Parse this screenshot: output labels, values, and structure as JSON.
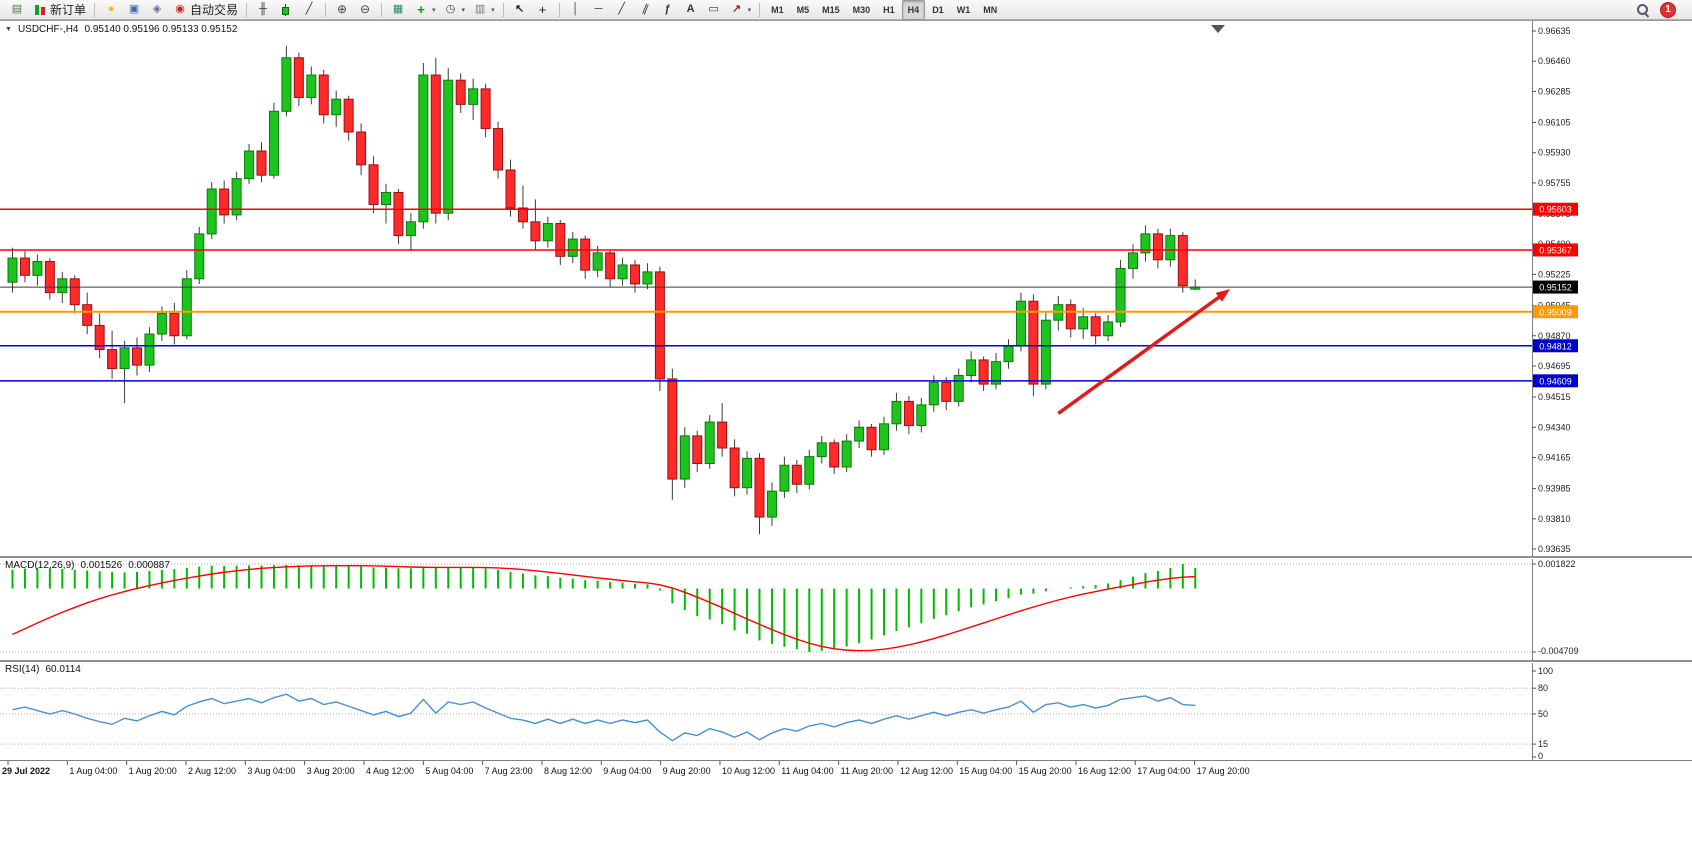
{
  "toolbar": {
    "items": [
      {
        "name": "new-chart",
        "icon": "chart-plus-icon"
      },
      {
        "name": "new-order",
        "icon": "new-order-icon",
        "label": "新订单"
      },
      {
        "sep": true
      },
      {
        "name": "market-watch",
        "icon": "lightbulb-icon"
      },
      {
        "name": "data-window",
        "icon": "chart-window-icon"
      },
      {
        "name": "navigator",
        "icon": "navigator-icon"
      },
      {
        "name": "auto-trading",
        "icon": "autotrading-icon",
        "label": "自动交易"
      },
      {
        "sep": true
      },
      {
        "name": "bar-chart-mode",
        "icon": "ohlc-bars-icon"
      },
      {
        "name": "candlestick-mode",
        "icon": "candlestick-icon"
      },
      {
        "name": "line-chart-mode",
        "icon": "line-chart-icon"
      },
      {
        "sep": true
      },
      {
        "name": "zoom-in",
        "icon": "zoom-in-icon"
      },
      {
        "name": "zoom-out",
        "icon": "zoom-out-icon"
      },
      {
        "sep": true
      },
      {
        "name": "tile-windows",
        "icon": "tile-windows-icon"
      },
      {
        "name": "indicators",
        "icon": "indicators-icon",
        "drop": true
      },
      {
        "name": "periods",
        "icon": "clock-icon",
        "drop": true
      },
      {
        "name": "templates",
        "icon": "template-icon",
        "drop": true
      },
      {
        "sep": true
      },
      {
        "name": "cursor",
        "icon": "cursor-icon"
      },
      {
        "name": "crosshair",
        "icon": "crosshair-icon"
      },
      {
        "sep": true
      },
      {
        "name": "vertical-line",
        "icon": "vline-icon"
      },
      {
        "name": "horizontal-line",
        "icon": "hline-icon"
      },
      {
        "name": "trendline",
        "icon": "trendline-icon"
      },
      {
        "name": "equidistant-channel",
        "icon": "channel-icon"
      },
      {
        "name": "fibonacci-retracement",
        "icon": "fibonacci-icon"
      },
      {
        "name": "text",
        "icon": "text-icon"
      },
      {
        "name": "text-label",
        "icon": "label-icon"
      },
      {
        "name": "arrows",
        "icon": "arrow-icon",
        "drop": true
      },
      {
        "sep": true
      },
      {
        "name": "tf-m1",
        "label": "M1",
        "tf": true
      },
      {
        "name": "tf-m5",
        "label": "M5",
        "tf": true
      },
      {
        "name": "tf-m15",
        "label": "M15",
        "tf": true
      },
      {
        "name": "tf-m30",
        "label": "M30",
        "tf": true
      },
      {
        "name": "tf-h1",
        "label": "H1",
        "tf": true
      },
      {
        "name": "tf-h4",
        "label": "H4",
        "tf": true,
        "active": true
      },
      {
        "name": "tf-d1",
        "label": "D1",
        "tf": true
      },
      {
        "name": "tf-w1",
        "label": "W1",
        "tf": true
      },
      {
        "name": "tf-mn",
        "label": "MN",
        "tf": true
      }
    ],
    "right_items": [
      {
        "name": "search",
        "icon": "magnifier-icon"
      },
      {
        "name": "notifications",
        "icon": "notification-badge",
        "label": "1"
      }
    ]
  },
  "chart": {
    "title_symbol": "USDCHF-,H4",
    "title_ohlc": "0.95140 0.95196 0.95133 0.95152"
  },
  "chart_data": {
    "type": "candlestick",
    "symbol": "USDCHF",
    "timeframe": "H4",
    "colors": {
      "bull": "#1ec41e",
      "bull_border": "#0b7a0b",
      "bear": "#ff2a2a",
      "bear_border": "#991111",
      "wick": "#3c3c3c",
      "macd_histogram": "#00bb00",
      "macd_signal": "#ff0000",
      "rsi_line": "#4a90d2"
    },
    "y_axis": {
      "max": 0.96635,
      "min": 0.93635,
      "ticks": [
        "0.96635",
        "0.96460",
        "0.96285",
        "0.96105",
        "0.95930",
        "0.95755",
        "0.95575",
        "0.95400",
        "0.95225",
        "0.95045",
        "0.94870",
        "0.94695",
        "0.94515",
        "0.94340",
        "0.94165",
        "0.93985",
        "0.93810",
        "0.93635"
      ]
    },
    "x_axis": {
      "labels": [
        "29 Jul 2022",
        "1 Aug 04:00",
        "1 Aug 20:00",
        "2 Aug 12:00",
        "3 Aug 04:00",
        "3 Aug 20:00",
        "4 Aug 12:00",
        "5 Aug 04:00",
        "7 Aug 23:00",
        "8 Aug 12:00",
        "9 Aug 04:00",
        "9 Aug 20:00",
        "10 Aug 12:00",
        "11 Aug 04:00",
        "11 Aug 20:00",
        "12 Aug 12:00",
        "15 Aug 04:00",
        "15 Aug 20:00",
        "16 Aug 12:00",
        "17 Aug 04:00",
        "17 Aug 20:00"
      ]
    },
    "ohlc": [
      [
        0.9518,
        0.9538,
        0.9512,
        0.9532
      ],
      [
        0.9532,
        0.9536,
        0.9518,
        0.9522
      ],
      [
        0.9522,
        0.9534,
        0.9516,
        0.953
      ],
      [
        0.953,
        0.9532,
        0.9508,
        0.9512
      ],
      [
        0.9512,
        0.9524,
        0.9506,
        0.952
      ],
      [
        0.952,
        0.9522,
        0.95,
        0.9505
      ],
      [
        0.9505,
        0.9512,
        0.9488,
        0.9493
      ],
      [
        0.9493,
        0.95,
        0.9474,
        0.9479
      ],
      [
        0.9479,
        0.949,
        0.9462,
        0.9468
      ],
      [
        0.9468,
        0.9484,
        0.9448,
        0.948
      ],
      [
        0.948,
        0.9486,
        0.9464,
        0.947
      ],
      [
        0.947,
        0.9492,
        0.9466,
        0.9488
      ],
      [
        0.9488,
        0.9504,
        0.9484,
        0.95
      ],
      [
        0.95,
        0.9506,
        0.9482,
        0.9487
      ],
      [
        0.9487,
        0.9525,
        0.9485,
        0.952
      ],
      [
        0.952,
        0.955,
        0.9517,
        0.9546
      ],
      [
        0.9546,
        0.9576,
        0.9543,
        0.9572
      ],
      [
        0.9572,
        0.9577,
        0.9552,
        0.9557
      ],
      [
        0.9557,
        0.9582,
        0.9554,
        0.9578
      ],
      [
        0.9578,
        0.9598,
        0.9575,
        0.9594
      ],
      [
        0.9594,
        0.9599,
        0.9576,
        0.958
      ],
      [
        0.958,
        0.9622,
        0.9578,
        0.9617
      ],
      [
        0.9617,
        0.9655,
        0.9614,
        0.9648
      ],
      [
        0.9648,
        0.9651,
        0.962,
        0.9625
      ],
      [
        0.9625,
        0.9643,
        0.9621,
        0.9638
      ],
      [
        0.9638,
        0.9641,
        0.961,
        0.9615
      ],
      [
        0.9615,
        0.9629,
        0.9608,
        0.9624
      ],
      [
        0.9624,
        0.9626,
        0.96,
        0.9605
      ],
      [
        0.9605,
        0.961,
        0.958,
        0.9586
      ],
      [
        0.9586,
        0.9591,
        0.9558,
        0.9563
      ],
      [
        0.9563,
        0.9575,
        0.9552,
        0.957
      ],
      [
        0.957,
        0.9572,
        0.954,
        0.9545
      ],
      [
        0.9545,
        0.9558,
        0.9536,
        0.9553
      ],
      [
        0.9553,
        0.9645,
        0.9549,
        0.9638
      ],
      [
        0.9638,
        0.9648,
        0.9552,
        0.9558
      ],
      [
        0.9558,
        0.9642,
        0.9554,
        0.9635
      ],
      [
        0.9635,
        0.9639,
        0.9616,
        0.9621
      ],
      [
        0.9621,
        0.9636,
        0.9612,
        0.963
      ],
      [
        0.963,
        0.9633,
        0.9602,
        0.9607
      ],
      [
        0.9607,
        0.9611,
        0.9578,
        0.9583
      ],
      [
        0.9583,
        0.9589,
        0.9556,
        0.9561
      ],
      [
        0.9561,
        0.9574,
        0.9549,
        0.9553
      ],
      [
        0.9553,
        0.9566,
        0.9537,
        0.9542
      ],
      [
        0.9542,
        0.9556,
        0.9538,
        0.9552
      ],
      [
        0.9552,
        0.9554,
        0.9528,
        0.9533
      ],
      [
        0.9533,
        0.9547,
        0.9529,
        0.9543
      ],
      [
        0.9543,
        0.9545,
        0.952,
        0.9525
      ],
      [
        0.9525,
        0.9539,
        0.9521,
        0.9535
      ],
      [
        0.9535,
        0.9537,
        0.9515,
        0.952
      ],
      [
        0.952,
        0.9532,
        0.9516,
        0.9528
      ],
      [
        0.9528,
        0.9531,
        0.9512,
        0.9517
      ],
      [
        0.9517,
        0.9529,
        0.9514,
        0.9524
      ],
      [
        0.9524,
        0.9527,
        0.9455,
        0.9462
      ],
      [
        0.9462,
        0.9468,
        0.9392,
        0.9404
      ],
      [
        0.9404,
        0.9434,
        0.9399,
        0.9429
      ],
      [
        0.9429,
        0.9432,
        0.9408,
        0.9413
      ],
      [
        0.9413,
        0.9441,
        0.941,
        0.9437
      ],
      [
        0.9437,
        0.9448,
        0.9417,
        0.9422
      ],
      [
        0.9422,
        0.9427,
        0.9394,
        0.9399
      ],
      [
        0.9399,
        0.942,
        0.9395,
        0.9416
      ],
      [
        0.9416,
        0.9419,
        0.9372,
        0.9382
      ],
      [
        0.9382,
        0.9402,
        0.9377,
        0.9397
      ],
      [
        0.9397,
        0.9417,
        0.9393,
        0.9412
      ],
      [
        0.9412,
        0.9415,
        0.9396,
        0.9401
      ],
      [
        0.9401,
        0.9421,
        0.9398,
        0.9417
      ],
      [
        0.9417,
        0.9429,
        0.9413,
        0.9425
      ],
      [
        0.9425,
        0.9427,
        0.9407,
        0.9411
      ],
      [
        0.9411,
        0.943,
        0.9408,
        0.9426
      ],
      [
        0.9426,
        0.9438,
        0.9422,
        0.9434
      ],
      [
        0.9434,
        0.9436,
        0.9417,
        0.9421
      ],
      [
        0.9421,
        0.944,
        0.9418,
        0.9436
      ],
      [
        0.9436,
        0.9454,
        0.9432,
        0.9449
      ],
      [
        0.9449,
        0.9452,
        0.943,
        0.9435
      ],
      [
        0.9435,
        0.9451,
        0.9431,
        0.9447
      ],
      [
        0.9447,
        0.9464,
        0.9443,
        0.946
      ],
      [
        0.946,
        0.9463,
        0.9444,
        0.9449
      ],
      [
        0.9449,
        0.9468,
        0.9446,
        0.9464
      ],
      [
        0.9464,
        0.9478,
        0.946,
        0.9473
      ],
      [
        0.9473,
        0.9475,
        0.9455,
        0.9459
      ],
      [
        0.9459,
        0.9477,
        0.9456,
        0.9472
      ],
      [
        0.9472,
        0.9485,
        0.9468,
        0.9481
      ],
      [
        0.9481,
        0.9512,
        0.9478,
        0.9507
      ],
      [
        0.9507,
        0.9511,
        0.9452,
        0.9459
      ],
      [
        0.9459,
        0.9501,
        0.9456,
        0.9496
      ],
      [
        0.9496,
        0.951,
        0.949,
        0.9505
      ],
      [
        0.9505,
        0.9508,
        0.9486,
        0.9491
      ],
      [
        0.9491,
        0.9503,
        0.9485,
        0.9498
      ],
      [
        0.9498,
        0.95,
        0.9482,
        0.9487
      ],
      [
        0.9487,
        0.9499,
        0.9484,
        0.9495
      ],
      [
        0.9495,
        0.9531,
        0.9492,
        0.9526
      ],
      [
        0.9526,
        0.954,
        0.952,
        0.9535
      ],
      [
        0.9535,
        0.9551,
        0.953,
        0.9546
      ],
      [
        0.9546,
        0.9549,
        0.9526,
        0.9531
      ],
      [
        0.9531,
        0.9549,
        0.9527,
        0.9545
      ],
      [
        0.9545,
        0.9547,
        0.9512,
        0.9516
      ],
      [
        0.9514,
        0.95196,
        0.95133,
        0.95152
      ]
    ],
    "horizontal_levels": [
      {
        "price": 0.95603,
        "label": "0.95603",
        "color": "#ff0000",
        "box": "#ff0000",
        "width": 1.5
      },
      {
        "price": 0.95367,
        "label": "0.95367",
        "color": "#ff0000",
        "box": "#ff0000",
        "width": 1.5
      },
      {
        "price": 0.95152,
        "label": "0.95152",
        "color": "#3a3a3a",
        "box": "#000000",
        "width": 1,
        "current": true
      },
      {
        "price": 0.95009,
        "label": "0.95009",
        "color": "#ff9900",
        "box": "#ff9900",
        "width": 2
      },
      {
        "price": 0.94812,
        "label": "0.94812",
        "color": "#0000e0",
        "box": "#0000cc",
        "width": 1.5
      },
      {
        "price": 0.94609,
        "label": "0.94609",
        "color": "#0000e0",
        "box": "#0000cc",
        "width": 1.5
      }
    ],
    "trend_arrow": {
      "from": {
        "bar": 84,
        "price": 0.9442
      },
      "to": {
        "bar": 97.8,
        "price": 0.9514
      },
      "color": "#e01b1b"
    },
    "indicators": {
      "macd": {
        "name": "MACD(12,26,9)",
        "value_main": "0.001526",
        "value_signal": "0.000887",
        "scale_max": "0.001822",
        "scale_min": "-0.004709",
        "main": [
          0.0014,
          0.00148,
          0.00152,
          0.0015,
          0.00146,
          0.0014,
          0.00134,
          0.00128,
          0.00122,
          0.0012,
          0.00124,
          0.0013,
          0.00138,
          0.00144,
          0.00154,
          0.00163,
          0.0017,
          0.00168,
          0.0017,
          0.00172,
          0.0017,
          0.00173,
          0.00176,
          0.00172,
          0.00173,
          0.0017,
          0.00171,
          0.00168,
          0.00163,
          0.00157,
          0.00156,
          0.0015,
          0.0015,
          0.00162,
          0.00152,
          0.0016,
          0.00158,
          0.00158,
          0.0015,
          0.00138,
          0.00124,
          0.00112,
          0.00098,
          0.00092,
          0.0008,
          0.00074,
          0.00062,
          0.00058,
          0.00048,
          0.00044,
          0.00036,
          0.00032,
          -0.00015,
          -0.0011,
          -0.0016,
          -0.00205,
          -0.0023,
          -0.00265,
          -0.0031,
          -0.00335,
          -0.00385,
          -0.0041,
          -0.00432,
          -0.0045,
          -0.004709,
          -0.00462,
          -0.00448,
          -0.0043,
          -0.00405,
          -0.00378,
          -0.00348,
          -0.00315,
          -0.00288,
          -0.00258,
          -0.00225,
          -0.00198,
          -0.00168,
          -0.0014,
          -0.00118,
          -0.00095,
          -0.00072,
          -0.00045,
          -0.00038,
          -0.0002,
          0.0,
          8e-05,
          0.00018,
          0.00026,
          0.00038,
          0.00062,
          0.00088,
          0.00115,
          0.0013,
          0.00152,
          0.001822,
          0.001526
        ],
        "signal": [
          -0.0034,
          -0.00298,
          -0.00256,
          -0.00215,
          -0.00176,
          -0.0014,
          -0.00106,
          -0.00075,
          -0.00047,
          -0.00022,
          1e-05,
          0.00022,
          0.00042,
          0.0006,
          0.00077,
          0.00093,
          0.00108,
          0.00121,
          0.00132,
          0.00142,
          0.0015,
          0.00156,
          0.00161,
          0.00165,
          0.00168,
          0.00169,
          0.0017,
          0.0017,
          0.0017,
          0.00168,
          0.00166,
          0.00163,
          0.0016,
          0.00158,
          0.00157,
          0.00157,
          0.00157,
          0.00157,
          0.00156,
          0.00153,
          0.00148,
          0.00141,
          0.00132,
          0.00122,
          0.00112,
          0.00101,
          0.0009,
          0.00079,
          0.00069,
          0.00059,
          0.0005,
          0.00042,
          0.00028,
          4e-05,
          -0.00028,
          -0.00064,
          -0.00102,
          -0.00142,
          -0.00184,
          -0.00226,
          -0.00266,
          -0.00305,
          -0.00342,
          -0.00376,
          -0.00406,
          -0.0043,
          -0.00447,
          -0.00457,
          -0.00461,
          -0.00459,
          -0.0045,
          -0.00436,
          -0.00418,
          -0.00396,
          -0.00371,
          -0.00344,
          -0.00315,
          -0.00285,
          -0.00255,
          -0.00225,
          -0.00195,
          -0.00165,
          -0.00137,
          -0.0011,
          -0.00085,
          -0.00062,
          -0.00041,
          -0.00022,
          -4e-05,
          0.00013,
          0.0003,
          0.00047,
          0.00062,
          0.00075,
          0.00084,
          0.000887
        ]
      },
      "rsi": {
        "name": "RSI(14)",
        "value": "60.0114",
        "scale_labels": [
          "100",
          "80",
          "50",
          "15",
          "0"
        ],
        "scale_values": [
          100,
          80,
          50,
          15,
          0
        ],
        "level_lines": [
          80,
          50,
          15
        ],
        "values": [
          55,
          58,
          54,
          50,
          54,
          50,
          45,
          41,
          38,
          45,
          42,
          48,
          53,
          49,
          59,
          64,
          68,
          62,
          65,
          68,
          63,
          69,
          73,
          65,
          68,
          61,
          64,
          59,
          54,
          49,
          53,
          47,
          51,
          67,
          51,
          64,
          61,
          64,
          57,
          51,
          45,
          43,
          39,
          44,
          39,
          44,
          39,
          43,
          39,
          43,
          40,
          43,
          29,
          19,
          28,
          25,
          33,
          29,
          23,
          29,
          20,
          28,
          33,
          30,
          36,
          39,
          35,
          40,
          43,
          39,
          44,
          48,
          44,
          48,
          52,
          48,
          52,
          55,
          51,
          55,
          58,
          65,
          52,
          61,
          63,
          58,
          61,
          57,
          60,
          67,
          69,
          71,
          65,
          69,
          61,
          60.01
        ]
      }
    }
  }
}
